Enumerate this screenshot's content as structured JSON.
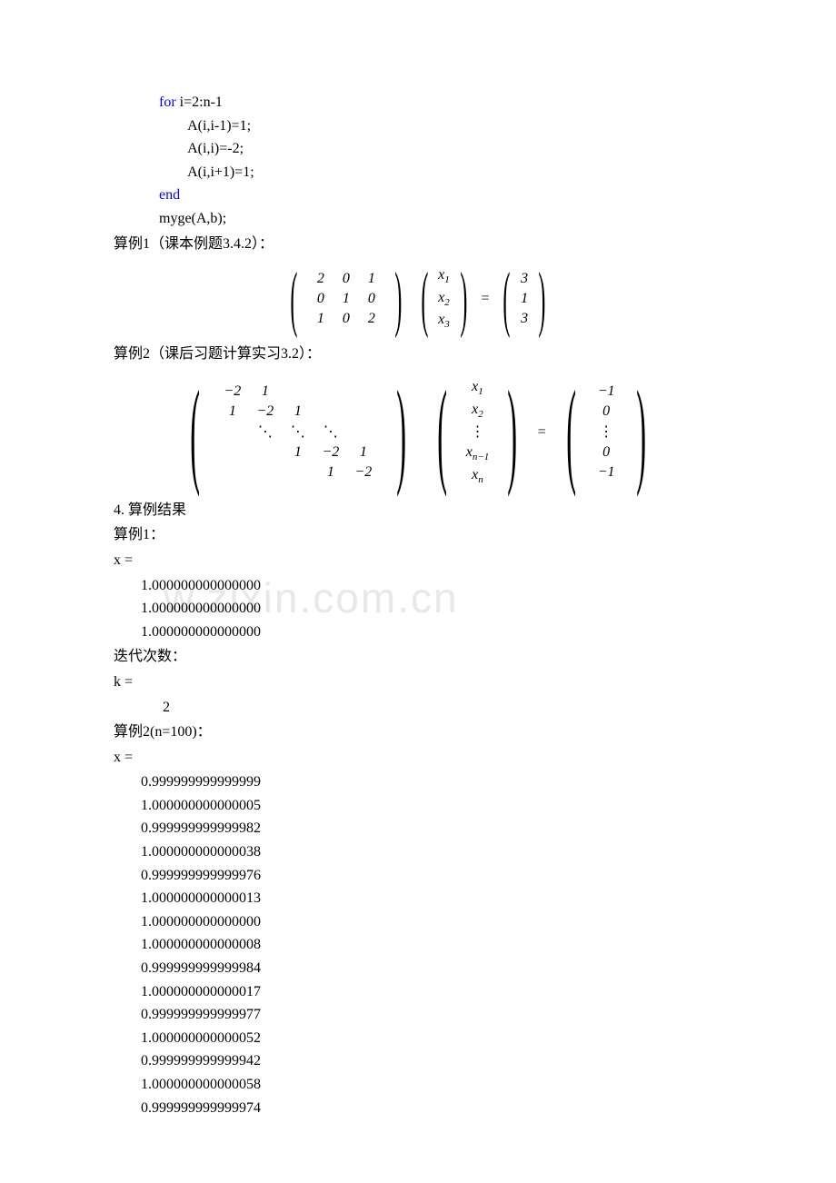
{
  "code": {
    "l1_kw": "for",
    "l1_rest": " i=2:n-1",
    "l2": "A(i,i-1)=1;",
    "l3": "A(i,i)=-2;",
    "l4": "A(i,i+1)=1;",
    "l5_kw": "end",
    "l6": "myge(A,b);"
  },
  "ex1_title": "算例1（课本例题3.4.2）：",
  "ex2_title": "算例2（课后习题计算实习3.2）：",
  "matrix1": {
    "a": [
      [
        "2",
        "0",
        "1"
      ],
      [
        "0",
        "1",
        "0"
      ],
      [
        "1",
        "0",
        "2"
      ]
    ],
    "x": [
      "x",
      "x",
      "x"
    ],
    "xsub": [
      "1",
      "2",
      "3"
    ],
    "b": [
      "3",
      "1",
      "3"
    ]
  },
  "matrix2": {
    "row1": [
      "−2",
      "1",
      "",
      "",
      ""
    ],
    "row2": [
      "1",
      "−2",
      "1",
      "",
      ""
    ],
    "row3": [
      "",
      "⋱",
      "⋱",
      "⋱",
      ""
    ],
    "row4": [
      "",
      "",
      "1",
      "−2",
      "1"
    ],
    "row5": [
      "",
      "",
      "",
      "1",
      "−2"
    ],
    "x": [
      "x",
      "x",
      "⋮",
      "x",
      "x"
    ],
    "xsub": [
      "1",
      "2",
      "",
      "n−1",
      "n"
    ],
    "b": [
      "−1",
      "0",
      "⋮",
      "0",
      "−1"
    ]
  },
  "sec4": "4. 算例结果",
  "res1_title": "算例1：",
  "res1_xlabel": "x =",
  "res1_x": [
    "1.000000000000000",
    "1.000000000000000",
    "1.000000000000000"
  ],
  "res1_iter_label": "迭代次数：",
  "res1_klabel": "k =",
  "res1_k": "2",
  "res2_title": "算例2(n=100)：",
  "res2_xlabel": "x =",
  "res2_x": [
    "0.999999999999999",
    "1.000000000000005",
    "0.999999999999982",
    "1.000000000000038",
    "0.999999999999976",
    "1.000000000000013",
    "1.000000000000000",
    "1.000000000000008",
    "0.999999999999984",
    "1.000000000000017",
    "0.999999999999977",
    "1.000000000000052",
    "0.999999999999942",
    "1.000000000000058",
    "0.999999999999974"
  ]
}
